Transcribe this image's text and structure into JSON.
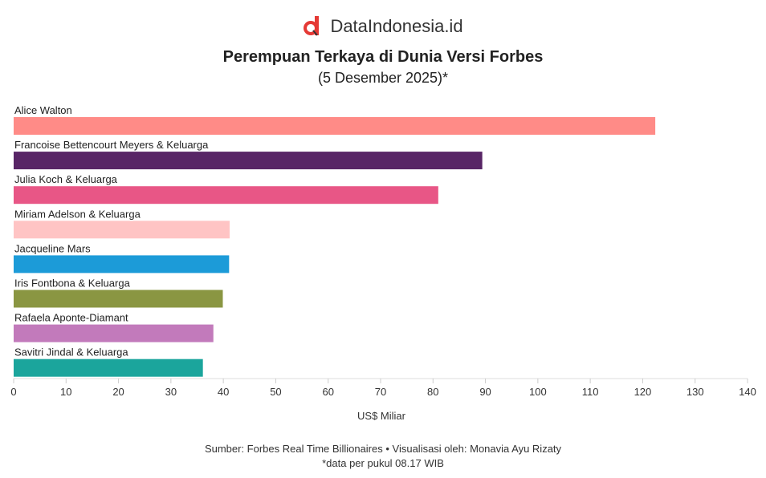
{
  "logo": {
    "text": "DataIndonesia.id"
  },
  "chart_data": {
    "type": "bar",
    "orientation": "horizontal",
    "title": "Perempuan Terkaya di Dunia Versi Forbes",
    "subtitle": "(5 Desember 2025)*",
    "xlabel": "US$ Miliar",
    "xlim": [
      0,
      140
    ],
    "xticks": [
      0,
      10,
      20,
      30,
      40,
      50,
      60,
      70,
      80,
      90,
      100,
      110,
      120,
      130,
      140
    ],
    "categories": [
      "Alice Walton",
      "Francoise Bettencourt Meyers & Keluarga",
      "Julia Koch & Keluarga",
      "Miriam Adelson & Keluarga",
      "Jacqueline Mars",
      "Iris Fontbona & Keluarga",
      "Rafaela Aponte-Diamant",
      "Savitri Jindal & Keluarga"
    ],
    "values": [
      122.4,
      89.4,
      81.0,
      41.2,
      41.1,
      39.9,
      38.1,
      36.1
    ],
    "colors": [
      "#ff8b87",
      "#582566",
      "#e85686",
      "#ffc4c4",
      "#1c9bd8",
      "#8a9642",
      "#c27abb",
      "#1ba59c"
    ],
    "grid": false
  },
  "footer": {
    "source": "Sumber: Forbes Real Time Billionaires • Visualisasi oleh: Monavia Ayu Rizaty",
    "note": "*data per pukul 08.17 WIB"
  }
}
